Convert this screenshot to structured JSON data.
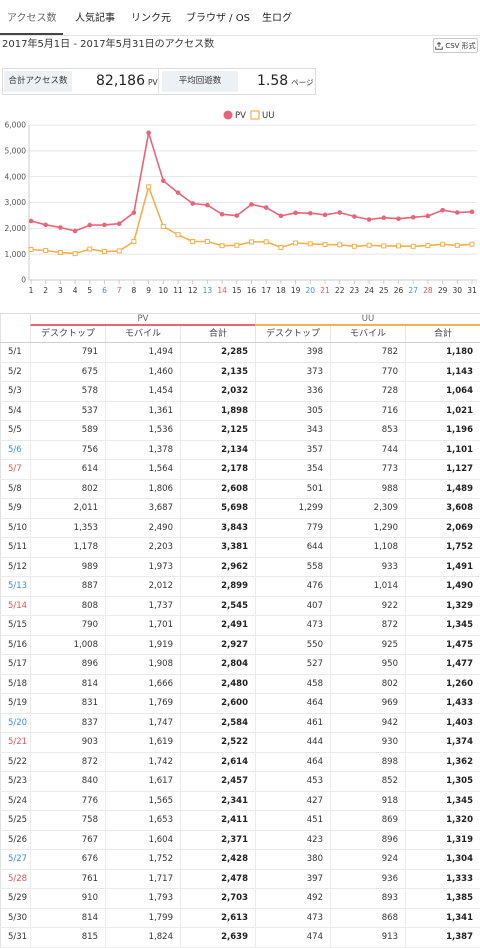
{
  "tabs": [
    {
      "label": "アクセス数",
      "active": true
    },
    {
      "label": "人気記事"
    },
    {
      "label": "リンク元"
    },
    {
      "label": "ブラウザ / OS"
    },
    {
      "label": "生ログ"
    }
  ],
  "period_title": "2017年5月1日 - 2017年5月31日のアクセス数",
  "csv_button": {
    "label": "CSV 形式",
    "icon": "export-icon"
  },
  "stats": {
    "total_label": "合計アクセス数",
    "total_value": "82,186",
    "total_unit": "PV",
    "avg_label": "平均回遊数",
    "avg_value": "1.58",
    "avg_unit": "ページ"
  },
  "colors": {
    "pv": "#e8647a",
    "uu": "#f2b14f",
    "saturday": "#3d8fd8",
    "sunday": "#e05757"
  },
  "chart_data": {
    "type": "line",
    "x": [
      1,
      2,
      3,
      4,
      5,
      6,
      7,
      8,
      9,
      10,
      11,
      12,
      13,
      14,
      15,
      16,
      17,
      18,
      19,
      20,
      21,
      22,
      23,
      24,
      25,
      26,
      27,
      28,
      29,
      30,
      31
    ],
    "series": [
      {
        "name": "PV",
        "color": "#e8647a",
        "marker": "circle",
        "values": [
          2285,
          2135,
          2032,
          1898,
          2125,
          2134,
          2178,
          2608,
          5698,
          3843,
          3381,
          2962,
          2899,
          2545,
          2491,
          2927,
          2804,
          2480,
          2600,
          2584,
          2522,
          2614,
          2457,
          2341,
          2411,
          2371,
          2428,
          2478,
          2703,
          2613,
          2639
        ]
      },
      {
        "name": "UU",
        "color": "#f2b14f",
        "marker": "square",
        "values": [
          1180,
          1143,
          1064,
          1021,
          1196,
          1101,
          1127,
          1489,
          3608,
          2069,
          1752,
          1491,
          1490,
          1329,
          1345,
          1475,
          1477,
          1260,
          1433,
          1403,
          1374,
          1362,
          1305,
          1345,
          1320,
          1319,
          1304,
          1333,
          1385,
          1341,
          1387
        ]
      }
    ],
    "ylim": [
      0,
      6000
    ],
    "yticks": [
      0,
      1000,
      2000,
      3000,
      4000,
      5000,
      6000
    ],
    "ytick_labels": [
      "0",
      "1,000",
      "2,000",
      "3,000",
      "4,000",
      "5,000",
      "6,000"
    ],
    "saturdays": [
      6,
      13,
      20,
      27
    ],
    "sundays": [
      7,
      14,
      21,
      28
    ],
    "grid": true,
    "legend": "top-center",
    "title": "",
    "xlabel": "",
    "ylabel": ""
  },
  "table": {
    "group_headers": [
      "PV",
      "UU"
    ],
    "sub_headers": [
      "デスクトップ",
      "モバイル",
      "合計",
      "デスクトップ",
      "モバイル",
      "合計"
    ],
    "rows": [
      {
        "date": "5/1",
        "day": "",
        "cells": [
          "791",
          "1,494",
          "2,285",
          "398",
          "782",
          "1,180"
        ]
      },
      {
        "date": "5/2",
        "day": "",
        "cells": [
          "675",
          "1,460",
          "2,135",
          "373",
          "770",
          "1,143"
        ]
      },
      {
        "date": "5/3",
        "day": "",
        "cells": [
          "578",
          "1,454",
          "2,032",
          "336",
          "728",
          "1,064"
        ]
      },
      {
        "date": "5/4",
        "day": "",
        "cells": [
          "537",
          "1,361",
          "1,898",
          "305",
          "716",
          "1,021"
        ]
      },
      {
        "date": "5/5",
        "day": "",
        "cells": [
          "589",
          "1,536",
          "2,125",
          "343",
          "853",
          "1,196"
        ]
      },
      {
        "date": "5/6",
        "day": "sat",
        "cells": [
          "756",
          "1,378",
          "2,134",
          "357",
          "744",
          "1,101"
        ]
      },
      {
        "date": "5/7",
        "day": "sun",
        "cells": [
          "614",
          "1,564",
          "2,178",
          "354",
          "773",
          "1,127"
        ]
      },
      {
        "date": "5/8",
        "day": "",
        "cells": [
          "802",
          "1,806",
          "2,608",
          "501",
          "988",
          "1,489"
        ]
      },
      {
        "date": "5/9",
        "day": "",
        "cells": [
          "2,011",
          "3,687",
          "5,698",
          "1,299",
          "2,309",
          "3,608"
        ]
      },
      {
        "date": "5/10",
        "day": "",
        "cells": [
          "1,353",
          "2,490",
          "3,843",
          "779",
          "1,290",
          "2,069"
        ]
      },
      {
        "date": "5/11",
        "day": "",
        "cells": [
          "1,178",
          "2,203",
          "3,381",
          "644",
          "1,108",
          "1,752"
        ]
      },
      {
        "date": "5/12",
        "day": "",
        "cells": [
          "989",
          "1,973",
          "2,962",
          "558",
          "933",
          "1,491"
        ]
      },
      {
        "date": "5/13",
        "day": "sat",
        "cells": [
          "887",
          "2,012",
          "2,899",
          "476",
          "1,014",
          "1,490"
        ]
      },
      {
        "date": "5/14",
        "day": "sun",
        "cells": [
          "808",
          "1,737",
          "2,545",
          "407",
          "922",
          "1,329"
        ]
      },
      {
        "date": "5/15",
        "day": "",
        "cells": [
          "790",
          "1,701",
          "2,491",
          "473",
          "872",
          "1,345"
        ]
      },
      {
        "date": "5/16",
        "day": "",
        "cells": [
          "1,008",
          "1,919",
          "2,927",
          "550",
          "925",
          "1,475"
        ]
      },
      {
        "date": "5/17",
        "day": "",
        "cells": [
          "896",
          "1,908",
          "2,804",
          "527",
          "950",
          "1,477"
        ]
      },
      {
        "date": "5/18",
        "day": "",
        "cells": [
          "814",
          "1,666",
          "2,480",
          "458",
          "802",
          "1,260"
        ]
      },
      {
        "date": "5/19",
        "day": "",
        "cells": [
          "831",
          "1,769",
          "2,600",
          "464",
          "969",
          "1,433"
        ]
      },
      {
        "date": "5/20",
        "day": "sat",
        "cells": [
          "837",
          "1,747",
          "2,584",
          "461",
          "942",
          "1,403"
        ]
      },
      {
        "date": "5/21",
        "day": "sun",
        "cells": [
          "903",
          "1,619",
          "2,522",
          "444",
          "930",
          "1,374"
        ]
      },
      {
        "date": "5/22",
        "day": "",
        "cells": [
          "872",
          "1,742",
          "2,614",
          "464",
          "898",
          "1,362"
        ]
      },
      {
        "date": "5/23",
        "day": "",
        "cells": [
          "840",
          "1,617",
          "2,457",
          "453",
          "852",
          "1,305"
        ]
      },
      {
        "date": "5/24",
        "day": "",
        "cells": [
          "776",
          "1,565",
          "2,341",
          "427",
          "918",
          "1,345"
        ]
      },
      {
        "date": "5/25",
        "day": "",
        "cells": [
          "758",
          "1,653",
          "2,411",
          "451",
          "869",
          "1,320"
        ]
      },
      {
        "date": "5/26",
        "day": "",
        "cells": [
          "767",
          "1,604",
          "2,371",
          "423",
          "896",
          "1,319"
        ]
      },
      {
        "date": "5/27",
        "day": "sat",
        "cells": [
          "676",
          "1,752",
          "2,428",
          "380",
          "924",
          "1,304"
        ]
      },
      {
        "date": "5/28",
        "day": "sun",
        "cells": [
          "761",
          "1,717",
          "2,478",
          "397",
          "936",
          "1,333"
        ]
      },
      {
        "date": "5/29",
        "day": "",
        "cells": [
          "910",
          "1,793",
          "2,703",
          "492",
          "893",
          "1,385"
        ]
      },
      {
        "date": "5/30",
        "day": "",
        "cells": [
          "814",
          "1,799",
          "2,613",
          "473",
          "868",
          "1,341"
        ]
      },
      {
        "date": "5/31",
        "day": "",
        "cells": [
          "815",
          "1,824",
          "2,639",
          "474",
          "913",
          "1,387"
        ]
      }
    ]
  }
}
